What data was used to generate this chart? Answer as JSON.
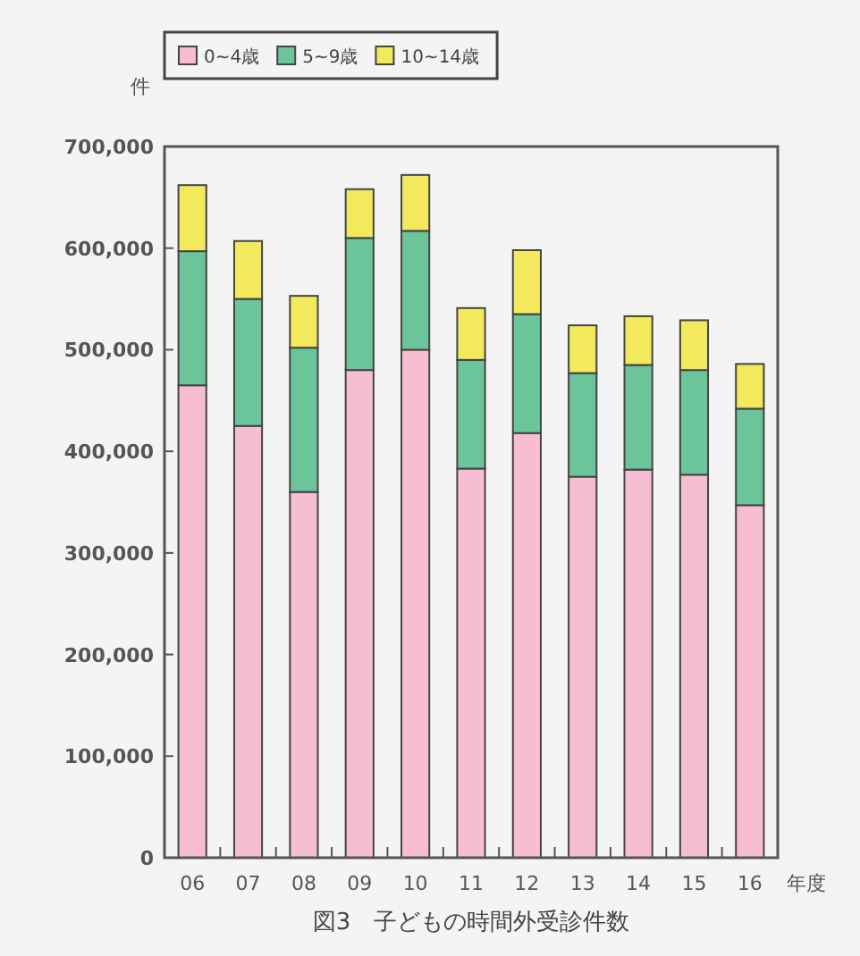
{
  "chart_data": {
    "type": "bar",
    "stacked": true,
    "title": "図3　子どもの時間外受診件数",
    "ylabel": "件",
    "xlabel": "年度",
    "categories": [
      "06",
      "07",
      "08",
      "09",
      "10",
      "11",
      "12",
      "13",
      "14",
      "15",
      "16"
    ],
    "series": [
      {
        "name": "0~4歳",
        "color": "#f7bdd2",
        "values": [
          465000,
          425000,
          360000,
          480000,
          500000,
          383000,
          418000,
          375000,
          382000,
          377000,
          347000
        ]
      },
      {
        "name": "5~9歳",
        "color": "#6cc49b",
        "values": [
          132000,
          125000,
          142000,
          130000,
          117000,
          107000,
          117000,
          102000,
          103000,
          103000,
          95000
        ]
      },
      {
        "name": "10~14歳",
        "color": "#f3e95c",
        "values": [
          65000,
          57000,
          51000,
          48000,
          55000,
          51000,
          63000,
          47000,
          48000,
          49000,
          44000
        ]
      }
    ],
    "ylim": [
      0,
      700000
    ],
    "yticks": [
      {
        "value": 0,
        "label": "0"
      },
      {
        "value": 100000,
        "label": "100,000"
      },
      {
        "value": 200000,
        "label": "200,000"
      },
      {
        "value": 300000,
        "label": "300,000"
      },
      {
        "value": 400000,
        "label": "400,000"
      },
      {
        "value": 500000,
        "label": "500,000"
      },
      {
        "value": 600000,
        "label": "600,000"
      },
      {
        "value": 700000,
        "label": "700,000"
      }
    ],
    "legend": "top left",
    "grid": false
  }
}
